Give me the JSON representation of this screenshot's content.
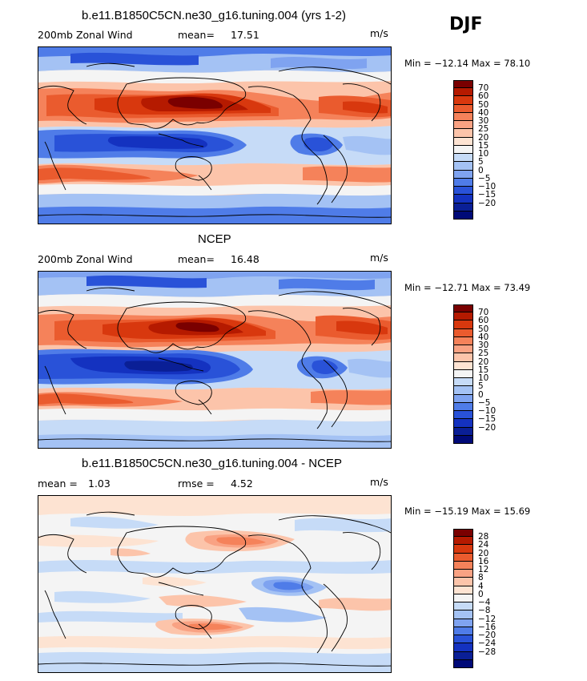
{
  "season": "DJF",
  "units": "m/s",
  "panels": [
    {
      "title": "b.e11.B1850C5CN.ne30_g16.tuning.004 (yrs 1-2)",
      "field": "200mb Zonal Wind",
      "stat1_label": "mean=",
      "stat1_value": "17.51",
      "stat2_label": "",
      "stat2_value": "",
      "units": "m/s",
      "minmax": "Min = −12.14 Max = 78.10",
      "colorbar": {
        "labels": [
          "70",
          "60",
          "50",
          "40",
          "30",
          "25",
          "20",
          "15",
          "10",
          "5",
          "0",
          "−5",
          "−10",
          "−15",
          "−20"
        ],
        "colors": [
          "#7a0000",
          "#b51a00",
          "#d8380e",
          "#ea5b2e",
          "#f5825a",
          "#f9a283",
          "#fcc4aa",
          "#fde3d2",
          "#f4f4f4",
          "#c6dbf7",
          "#a4c2f4",
          "#7fa3f0",
          "#4f7ce8",
          "#2952d8",
          "#1432c0",
          "#0a1f96",
          "#000a78"
        ]
      }
    },
    {
      "title": "NCEP",
      "field": "200mb Zonal Wind",
      "stat1_label": "mean=",
      "stat1_value": "16.48",
      "stat2_label": "",
      "stat2_value": "",
      "units": "m/s",
      "minmax": "Min = −12.71 Max = 73.49",
      "colorbar": {
        "labels": [
          "70",
          "60",
          "50",
          "40",
          "30",
          "25",
          "20",
          "15",
          "10",
          "5",
          "0",
          "−5",
          "−10",
          "−15",
          "−20"
        ],
        "colors": [
          "#7a0000",
          "#b51a00",
          "#d8380e",
          "#ea5b2e",
          "#f5825a",
          "#f9a283",
          "#fcc4aa",
          "#fde3d2",
          "#f4f4f4",
          "#c6dbf7",
          "#a4c2f4",
          "#7fa3f0",
          "#4f7ce8",
          "#2952d8",
          "#1432c0",
          "#0a1f96",
          "#000a78"
        ]
      }
    },
    {
      "title": "b.e11.B1850C5CN.ne30_g16.tuning.004 - NCEP",
      "field": "",
      "stat1_label": "mean =",
      "stat1_value": "1.03",
      "stat2_label": "rmse =",
      "stat2_value": "4.52",
      "units": "m/s",
      "minmax": "Min = −15.19 Max = 15.69",
      "colorbar": {
        "labels": [
          "28",
          "24",
          "20",
          "16",
          "12",
          "8",
          "4",
          "0",
          "−4",
          "−8",
          "−12",
          "−16",
          "−20",
          "−24",
          "−28"
        ],
        "colors": [
          "#7a0000",
          "#b51a00",
          "#d8380e",
          "#ea5b2e",
          "#f5825a",
          "#f9a283",
          "#fcc4aa",
          "#fde3d2",
          "#f4f4f4",
          "#c6dbf7",
          "#a4c2f4",
          "#7fa3f0",
          "#4f7ce8",
          "#2952d8",
          "#1432c0",
          "#0a1f96",
          "#000a78"
        ]
      }
    }
  ]
}
